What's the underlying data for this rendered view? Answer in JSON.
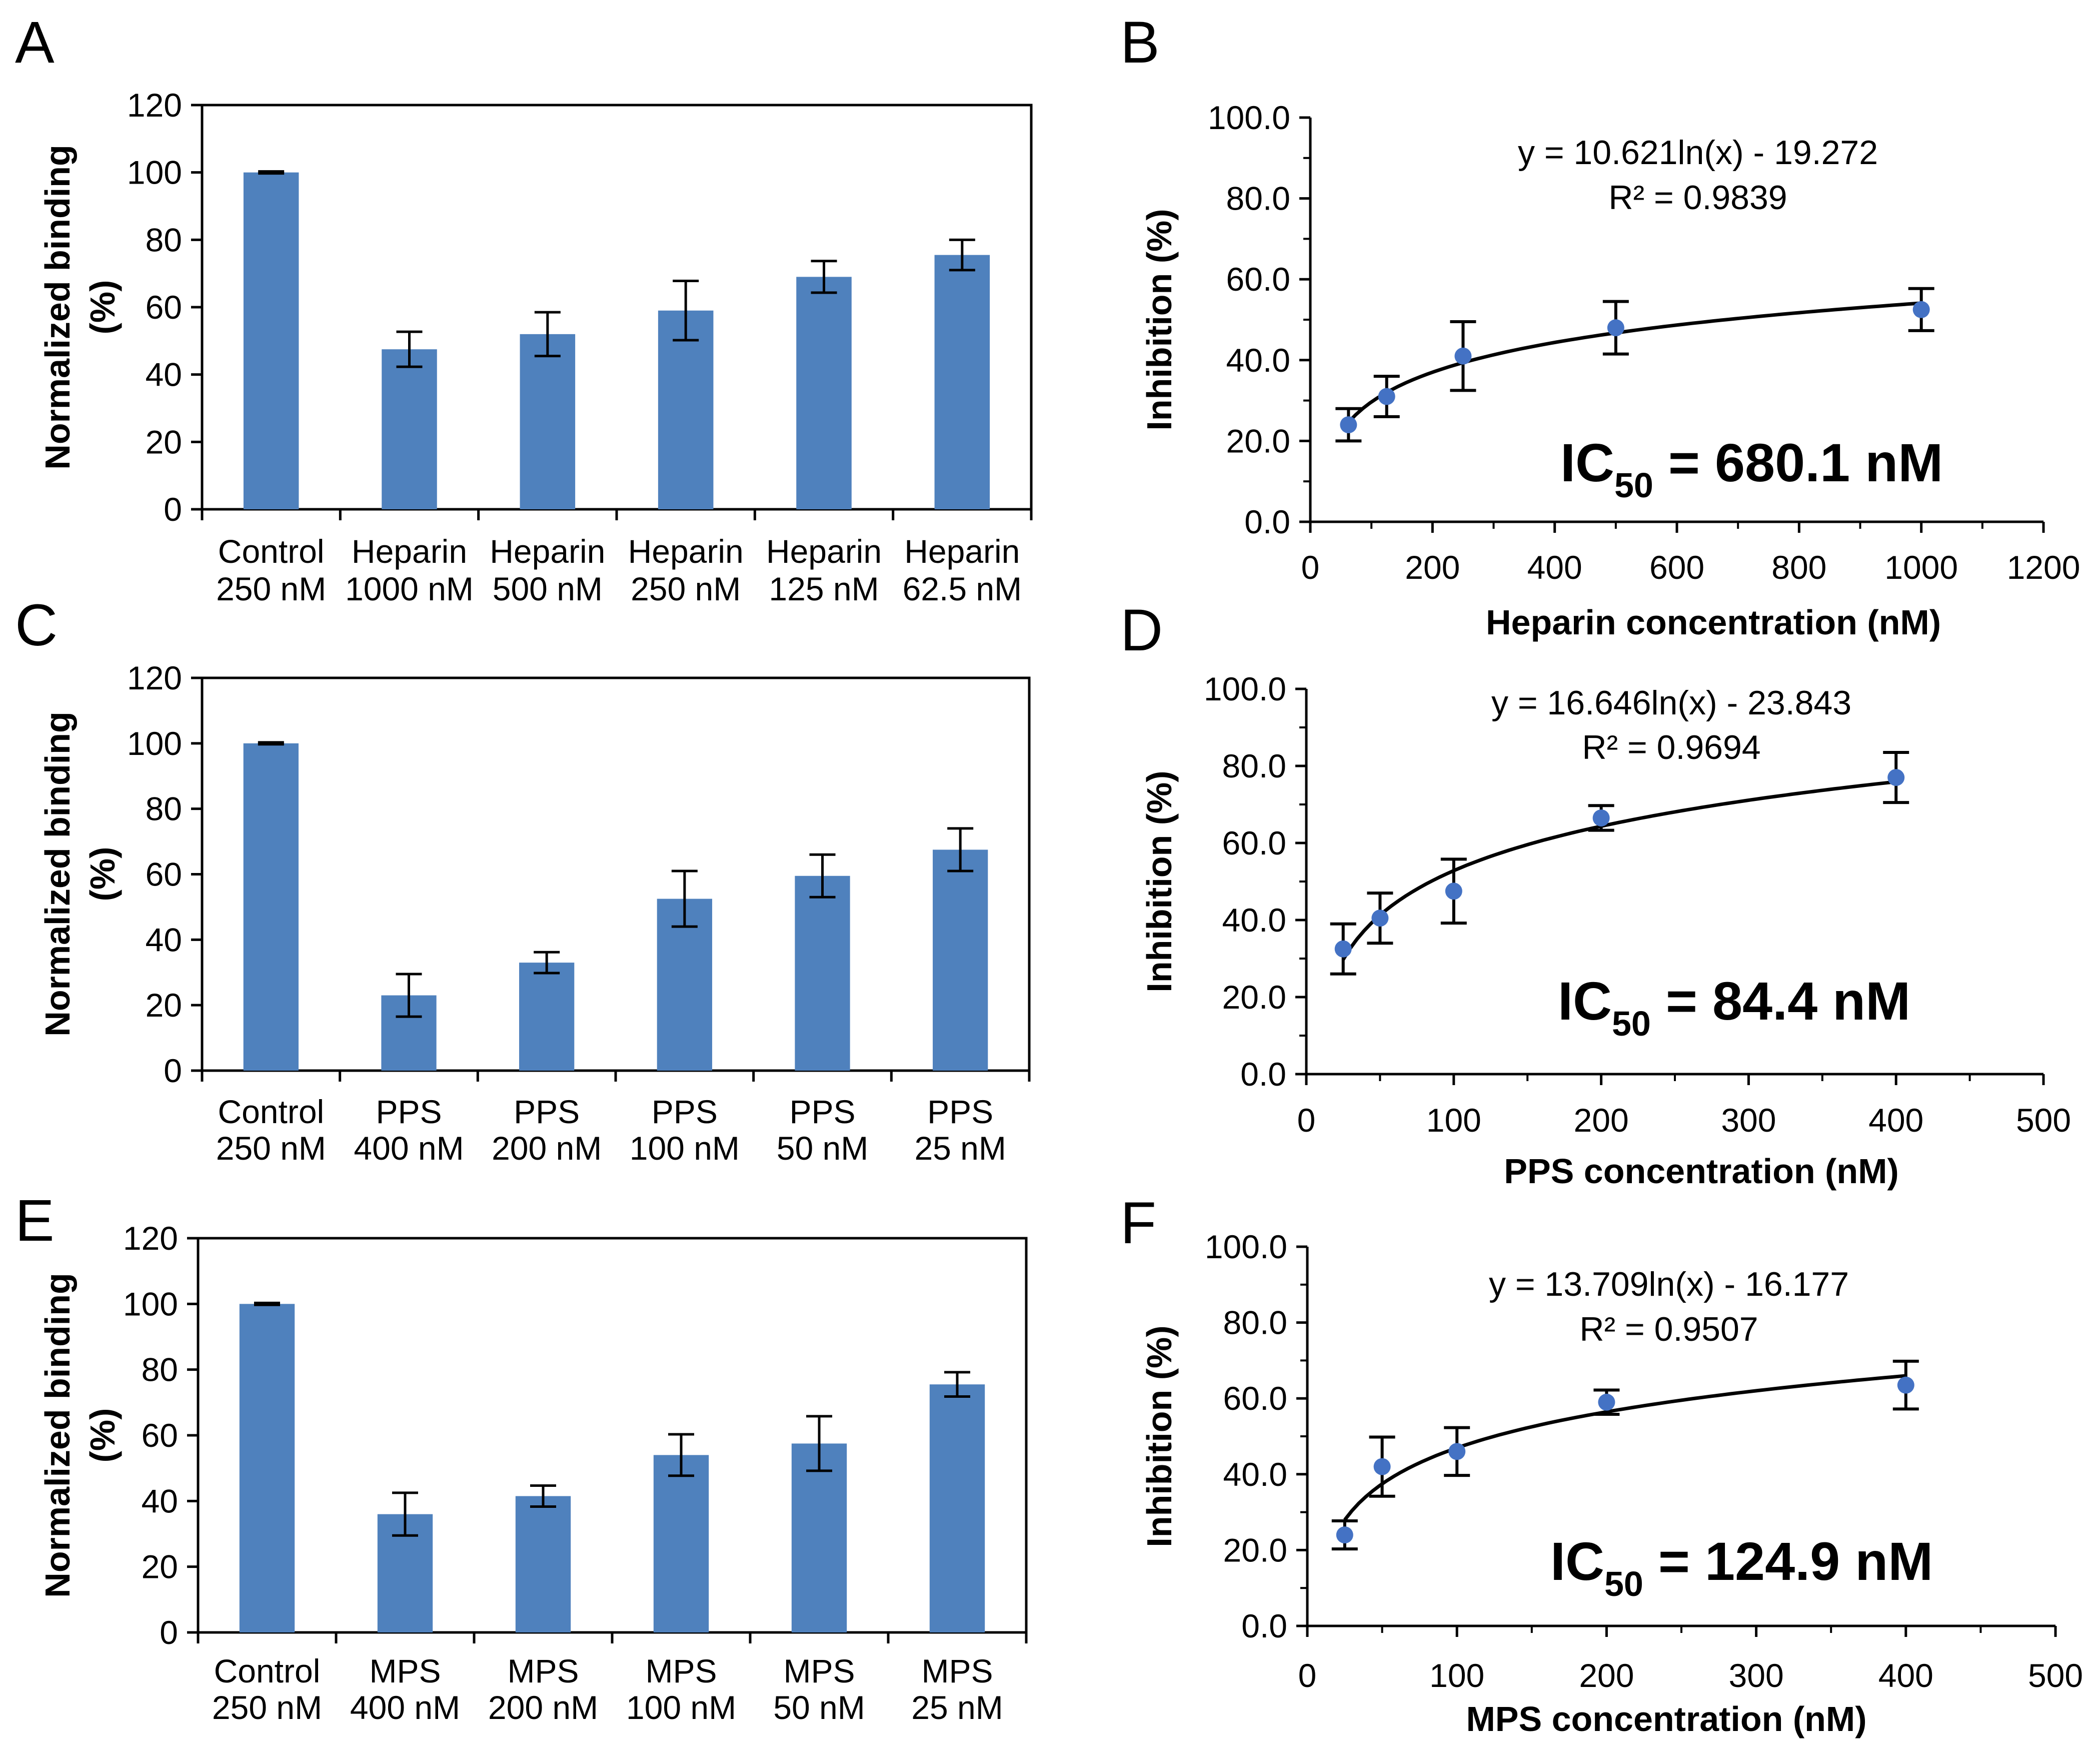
{
  "colors": {
    "bar": "#4F81BD",
    "point": "#4472C4",
    "line": "#000000",
    "axis": "#000000"
  },
  "chart_data": [
    {
      "id": "A",
      "letter": "A",
      "type": "bar",
      "ylabel_line1": "Normalized binding",
      "ylabel_line2": "(%)",
      "ylim": [
        0,
        120
      ],
      "yticks": [
        "0",
        "20",
        "40",
        "60",
        "80",
        "100",
        "120"
      ],
      "categories": [
        [
          "Control",
          "250 nM"
        ],
        [
          "Heparin",
          "1000 nM"
        ],
        [
          "Heparin",
          "500 nM"
        ],
        [
          "Heparin",
          "250 nM"
        ],
        [
          "Heparin",
          "125 nM"
        ],
        [
          "Heparin",
          "62.5 nM"
        ]
      ],
      "values": [
        100,
        47.5,
        52,
        59,
        69,
        75.5
      ],
      "errors": [
        0.3,
        5.2,
        6.5,
        8.8,
        4.7,
        4.5
      ]
    },
    {
      "id": "B",
      "letter": "B",
      "type": "scatter",
      "xlabel": "Heparin concentration (nM)",
      "ylabel": "Inhibition (%)",
      "xlim": [
        0,
        1200
      ],
      "ylim": [
        0,
        100
      ],
      "xticks": [
        "0",
        "200",
        "400",
        "600",
        "800",
        "1000",
        "1200"
      ],
      "yticks": [
        "0.0",
        "20.0",
        "40.0",
        "60.0",
        "80.0",
        "100.0"
      ],
      "x": [
        62.5,
        125,
        250,
        500,
        1000
      ],
      "y": [
        24,
        31,
        41,
        48,
        52.5
      ],
      "errors": [
        4,
        5,
        8.5,
        6.5,
        5.2
      ],
      "fit": {
        "a": 10.621,
        "b": -19.272
      },
      "equation": "y = 10.621ln(x) - 19.272",
      "r2": "R² = 0.9839",
      "ic50_prefix": "IC",
      "ic50_sub": "50",
      "ic50_value": " = 680.1 nM"
    },
    {
      "id": "C",
      "letter": "C",
      "type": "bar",
      "ylabel_line1": "Normalized binding",
      "ylabel_line2": "(%)",
      "ylim": [
        0,
        120
      ],
      "yticks": [
        "0",
        "20",
        "40",
        "60",
        "80",
        "100",
        "120"
      ],
      "categories": [
        [
          "Control",
          "250 nM"
        ],
        [
          "PPS",
          "400 nM"
        ],
        [
          "PPS",
          "200 nM"
        ],
        [
          "PPS",
          "100 nM"
        ],
        [
          "PPS",
          "50 nM"
        ],
        [
          "PPS",
          "25 nM"
        ]
      ],
      "values": [
        100,
        23,
        33,
        52.5,
        59.5,
        67.5
      ],
      "errors": [
        0.3,
        6.5,
        3.2,
        8.5,
        6.5,
        6.5
      ]
    },
    {
      "id": "D",
      "letter": "D",
      "type": "scatter",
      "xlabel": "PPS concentration (nM)",
      "ylabel": "Inhibition (%)",
      "xlim": [
        0,
        500
      ],
      "ylim": [
        0,
        100
      ],
      "xticks": [
        "0",
        "100",
        "200",
        "300",
        "400",
        "500"
      ],
      "yticks": [
        "0.0",
        "20.0",
        "40.0",
        "60.0",
        "80.0",
        "100.0"
      ],
      "x": [
        25,
        50,
        100,
        200,
        400
      ],
      "y": [
        32.5,
        40.5,
        47.5,
        66.5,
        77
      ],
      "errors": [
        6.5,
        6.5,
        8.3,
        3.2,
        6.5
      ],
      "fit": {
        "a": 16.646,
        "b": -23.843
      },
      "equation": "y = 16.646ln(x) - 23.843",
      "r2": "R² = 0.9694",
      "ic50_prefix": "IC",
      "ic50_sub": "50",
      "ic50_value": " = 84.4 nM"
    },
    {
      "id": "E",
      "letter": "E",
      "type": "bar",
      "ylabel_line1": "Normalized binding",
      "ylabel_line2": "(%)",
      "ylim": [
        0,
        120
      ],
      "yticks": [
        "0",
        "20",
        "40",
        "60",
        "80",
        "100",
        "120"
      ],
      "categories": [
        [
          "Control",
          "250 nM"
        ],
        [
          "MPS",
          "400 nM"
        ],
        [
          "MPS",
          "200 nM"
        ],
        [
          "MPS",
          "100 nM"
        ],
        [
          "MPS",
          "50 nM"
        ],
        [
          "MPS",
          "25 nM"
        ]
      ],
      "values": [
        100,
        36,
        41.5,
        54,
        57.5,
        75.5
      ],
      "errors": [
        0.3,
        6.5,
        3.2,
        6.3,
        8.3,
        3.7
      ]
    },
    {
      "id": "F",
      "letter": "F",
      "type": "scatter",
      "xlabel": "MPS concentration (nM)",
      "ylabel": "Inhibition (%)",
      "xlim": [
        0,
        500
      ],
      "ylim": [
        0,
        100
      ],
      "xticks": [
        "0",
        "100",
        "200",
        "300",
        "400",
        "500"
      ],
      "yticks": [
        "0.0",
        "20.0",
        "40.0",
        "60.0",
        "80.0",
        "100.0"
      ],
      "x": [
        25,
        50,
        100,
        200,
        400
      ],
      "y": [
        24,
        42,
        46,
        59,
        63.5
      ],
      "errors": [
        3.7,
        7.8,
        6.3,
        3.2,
        6.3
      ],
      "fit": {
        "a": 13.709,
        "b": -16.177
      },
      "equation": "y = 13.709ln(x) - 16.177",
      "r2": "R² = 0.9507",
      "ic50_prefix": "IC",
      "ic50_sub": "50",
      "ic50_value": " = 124.9 nM"
    }
  ]
}
